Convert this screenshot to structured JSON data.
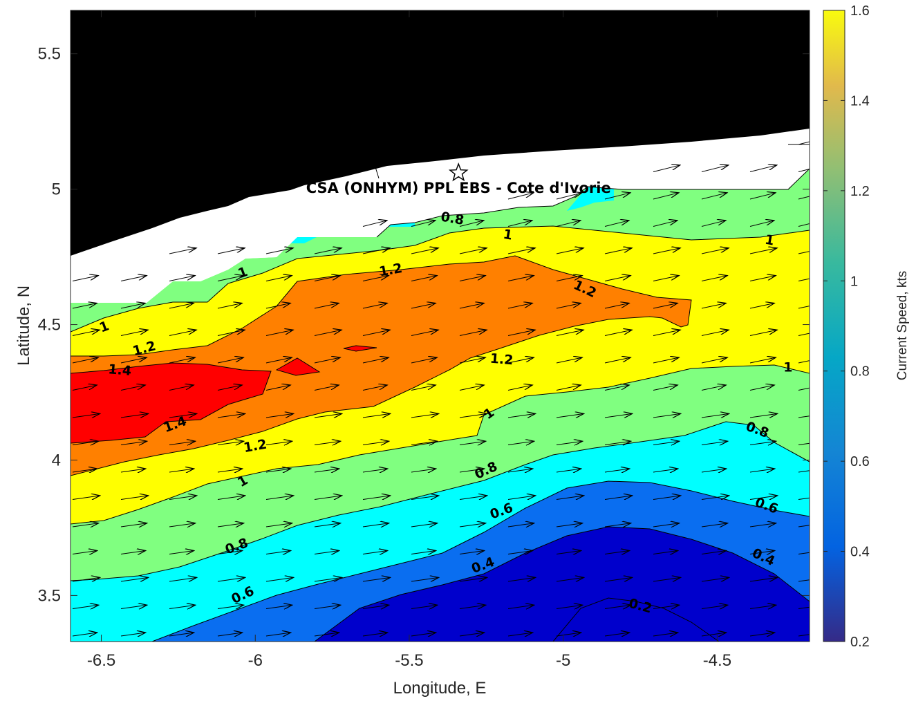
{
  "chart_data": {
    "type": "contour",
    "title": "",
    "xlabel": "Longitude, E",
    "ylabel": "Latitude, N",
    "xlim": [
      -6.6,
      -4.2
    ],
    "ylim": [
      3.33,
      5.66
    ],
    "xticks": [
      -6.5,
      -6,
      -5.5,
      -5,
      -4.5
    ],
    "xtick_labels": [
      "-6.5",
      "-6",
      "-5.5",
      "-5",
      "-4.5"
    ],
    "yticks": [
      3.5,
      4,
      4.5,
      5,
      5.5
    ],
    "ytick_labels": [
      "3.5",
      "4",
      "4.5",
      "5",
      "5.5"
    ],
    "colorbar": {
      "label": "Current Speed, kts",
      "min": 0.2,
      "max": 1.6,
      "ticks": [
        0.2,
        0.4,
        0.6,
        0.8,
        1,
        1.2,
        1.4,
        1.6
      ],
      "tick_labels": [
        "0.2",
        "0.4",
        "0.6",
        "0.8",
        "1",
        "1.2",
        "1.4",
        "1.6"
      ]
    },
    "levels": [
      0.2,
      0.4,
      0.6,
      0.8,
      1.0,
      1.2,
      1.4
    ],
    "level_colors": {
      "below_0.4": "#0000cc",
      "0.4-0.6": "#0a6ef0",
      "0.6-0.8": "#00ffff",
      "0.8-1.0": "#80ff80",
      "1.0-1.2": "#ffff00",
      "1.2-1.4": "#ff8000",
      "above_1.4": "#ff0000"
    },
    "land_color": "#000000",
    "nodata_color": "#ffffff",
    "contour_labels": [
      {
        "text": "0.8",
        "lon": -5.36,
        "lat": 4.89,
        "angle": 10
      },
      {
        "text": "1",
        "lon": -5.18,
        "lat": 4.83,
        "angle": 10
      },
      {
        "text": "1",
        "lon": -4.33,
        "lat": 4.81,
        "angle": 10
      },
      {
        "text": "1",
        "lon": -6.04,
        "lat": 4.69,
        "angle": -20
      },
      {
        "text": "1.2",
        "lon": -5.56,
        "lat": 4.7,
        "angle": -10
      },
      {
        "text": "1.2",
        "lon": -4.93,
        "lat": 4.63,
        "angle": 25
      },
      {
        "text": "1",
        "lon": -6.49,
        "lat": 4.49,
        "angle": -20
      },
      {
        "text": "1.2",
        "lon": -6.36,
        "lat": 4.41,
        "angle": -15
      },
      {
        "text": "1.4",
        "lon": -6.44,
        "lat": 4.33,
        "angle": 5
      },
      {
        "text": "1.2",
        "lon": -5.2,
        "lat": 4.37,
        "angle": 5
      },
      {
        "text": "1",
        "lon": -4.27,
        "lat": 4.34,
        "angle": 0
      },
      {
        "text": "1.4",
        "lon": -6.26,
        "lat": 4.13,
        "angle": -20
      },
      {
        "text": "1",
        "lon": -5.24,
        "lat": 4.17,
        "angle": -35
      },
      {
        "text": "0.8",
        "lon": -4.37,
        "lat": 4.11,
        "angle": 20
      },
      {
        "text": "1.2",
        "lon": -6.0,
        "lat": 4.05,
        "angle": -10
      },
      {
        "text": "0.8",
        "lon": -5.25,
        "lat": 3.96,
        "angle": -25
      },
      {
        "text": "1",
        "lon": -6.04,
        "lat": 3.92,
        "angle": -30
      },
      {
        "text": "0.6",
        "lon": -5.2,
        "lat": 3.81,
        "angle": -20
      },
      {
        "text": "0.6",
        "lon": -4.34,
        "lat": 3.83,
        "angle": 20
      },
      {
        "text": "0.8",
        "lon": -6.06,
        "lat": 3.68,
        "angle": -20
      },
      {
        "text": "0.4",
        "lon": -5.26,
        "lat": 3.61,
        "angle": -20
      },
      {
        "text": "0.4",
        "lon": -4.35,
        "lat": 3.64,
        "angle": 25
      },
      {
        "text": "0.6",
        "lon": -6.04,
        "lat": 3.5,
        "angle": -25
      },
      {
        "text": "0.2",
        "lon": -4.75,
        "lat": 3.46,
        "angle": 15
      }
    ],
    "station": {
      "label": "CSA (ONHYM) PPL EBS  - Cote d'Ivorie",
      "marker": "star",
      "lon": -5.34,
      "lat": 5.06
    }
  }
}
